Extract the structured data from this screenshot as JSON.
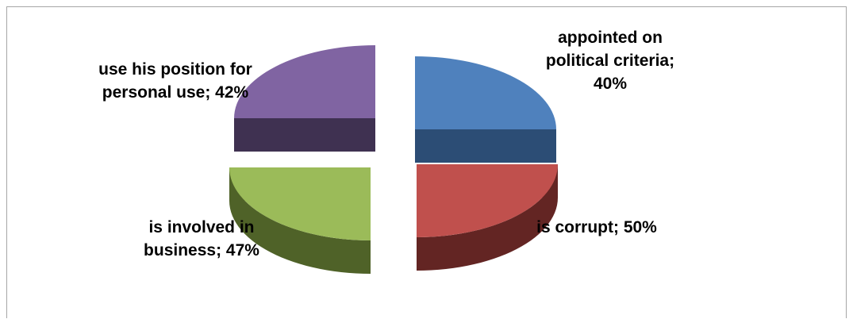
{
  "chart_data": {
    "type": "pie",
    "title": "",
    "legend": "none",
    "slices": [
      {
        "label": "appointed on political criteria",
        "value": 40,
        "display": "appointed on political criteria; 40%",
        "color": "#4f81bd",
        "side_color": "#2c4d75"
      },
      {
        "label": "is corrupt",
        "value": 50,
        "display": "is corrupt; 50%",
        "color": "#c0504d",
        "side_color": "#632523"
      },
      {
        "label": "is involved in business",
        "value": 47,
        "display": "is involved in business; 47%",
        "color": "#9bbb59",
        "side_color": "#4f6228"
      },
      {
        "label": "use his position for personal use",
        "value": 42,
        "display": "use his position for personal use; 42%",
        "color": "#8064a2",
        "side_color": "#3f3151"
      }
    ]
  }
}
